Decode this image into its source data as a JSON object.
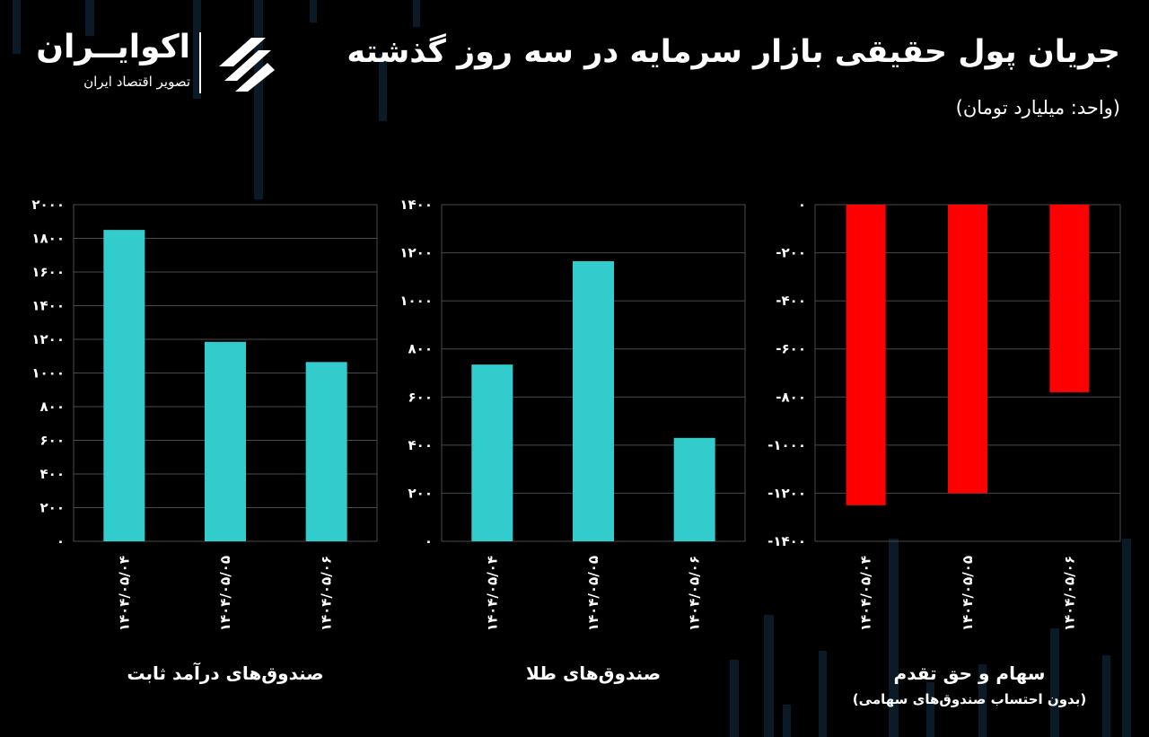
{
  "header": {
    "title": "جریان پول حقیقی بازار سرمایه در سه روز گذشته",
    "subtitle": "(واحد: میلیارد تومان)"
  },
  "logo": {
    "name": "اکوایــران",
    "tagline": "تصویر اقتصاد ایران"
  },
  "colors": {
    "positive": "#33cccc",
    "negative": "#ff0000",
    "grid": "#4a4a4a",
    "text": "#ffffff",
    "background": "#000000"
  },
  "chart_data": [
    {
      "type": "bar",
      "label": "صندوق‌های درآمد ثابت",
      "note": "",
      "categories": [
        "۱۴۰۴/۰۵/۰۴",
        "۱۴۰۴/۰۵/۰۵",
        "۱۴۰۴/۰۵/۰۶"
      ],
      "values": [
        1850,
        1185,
        1065
      ],
      "ylim": [
        0,
        2000
      ],
      "yticks": [
        0,
        200,
        400,
        600,
        800,
        1000,
        1200,
        1400,
        1600,
        1800,
        2000
      ],
      "ytick_labels": [
        "۰",
        "۲۰۰",
        "۴۰۰",
        "۶۰۰",
        "۸۰۰",
        "۱۰۰۰",
        "۱۲۰۰",
        "۱۴۰۰",
        "۱۶۰۰",
        "۱۸۰۰",
        "۲۰۰۰"
      ],
      "color": "#33cccc",
      "grid": true
    },
    {
      "type": "bar",
      "label": "صندوق‌های طلا",
      "note": "",
      "categories": [
        "۱۴۰۴/۰۵/۰۴",
        "۱۴۰۴/۰۵/۰۵",
        "۱۴۰۴/۰۵/۰۶"
      ],
      "values": [
        735,
        1165,
        430
      ],
      "ylim": [
        0,
        1400
      ],
      "yticks": [
        0,
        200,
        400,
        600,
        800,
        1000,
        1200,
        1400
      ],
      "ytick_labels": [
        "۰",
        "۲۰۰",
        "۴۰۰",
        "۶۰۰",
        "۸۰۰",
        "۱۰۰۰",
        "۱۲۰۰",
        "۱۴۰۰"
      ],
      "color": "#33cccc",
      "grid": true
    },
    {
      "type": "bar",
      "label": "سهام و حق تقدم",
      "note": "(بدون احتساب صندوق‌های سهامی)",
      "categories": [
        "۱۴۰۴/۰۵/۰۴",
        "۱۴۰۴/۰۵/۰۵",
        "۱۴۰۴/۰۵/۰۶"
      ],
      "values": [
        -1250,
        -1200,
        -780
      ],
      "ylim": [
        -1400,
        0
      ],
      "yticks": [
        0,
        -200,
        -400,
        -600,
        -800,
        -1000,
        -1200,
        -1400
      ],
      "ytick_labels": [
        "۰",
        "-۲۰۰",
        "-۴۰۰",
        "-۶۰۰",
        "-۸۰۰",
        "-۱۰۰۰",
        "-۱۲۰۰",
        "-۱۴۰۰"
      ],
      "color": "#ff0000",
      "grid": true
    }
  ]
}
